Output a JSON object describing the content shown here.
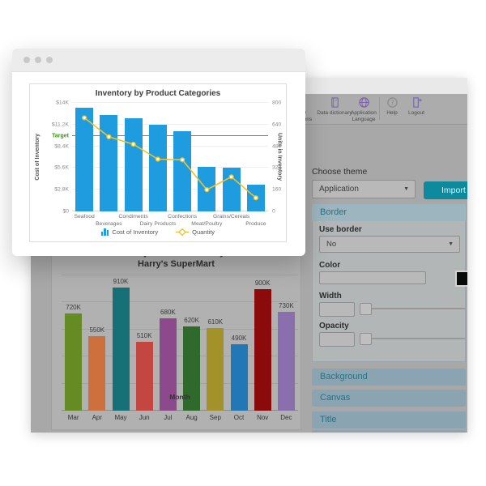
{
  "overlay_window": {
    "window_dots": 3
  },
  "toolbar": {
    "items": [
      {
        "label": "Deploy applications",
        "icon": "deploy-icon"
      },
      {
        "label": "Data dictionary",
        "icon": "book-icon"
      },
      {
        "label": "Application Language",
        "icon": "globe-icon"
      },
      {
        "label": "Help",
        "icon": "help-icon"
      },
      {
        "label": "Logout",
        "icon": "logout-icon"
      }
    ]
  },
  "theme_panel": {
    "choose_theme_label": "Choose theme",
    "theme_select_value": "Application",
    "import_button_label": "Import",
    "border": {
      "title": "Border",
      "use_border_label": "Use border",
      "use_border_value": "No",
      "color_label": "Color",
      "color_value": "",
      "color_swatch": "#000000",
      "width_label": "Width",
      "width_value": "",
      "opacity_label": "Opacity",
      "opacity_value": ""
    },
    "collapsed_sections": [
      "Background",
      "Canvas",
      "Title"
    ]
  },
  "chart_data": [
    {
      "type": "combo-bar-line",
      "title": "Inventory by Product Categories",
      "categories": [
        "Seafood",
        "Beverages",
        "Condiments",
        "Dairy Products",
        "Confections",
        "Meat/Poultry",
        "Grains/Cereals",
        "Produce"
      ],
      "series": [
        {
          "name": "Cost of Inventory",
          "type": "bar",
          "color": "#1f9ce0",
          "values_k_dollars": [
            13.4,
            12.4,
            12.0,
            11.2,
            10.3,
            5.7,
            5.6,
            3.5
          ]
        },
        {
          "name": "Quantity",
          "type": "line",
          "color": "#eec227",
          "values_units": [
            690,
            550,
            495,
            385,
            380,
            160,
            255,
            100
          ]
        }
      ],
      "y_left": {
        "label": "Cost of Inventory",
        "min": 0,
        "max": 14,
        "ticks": [
          "$0",
          "$2.8K",
          "$5.6K",
          "$8.4K",
          "$11.2K",
          "$14K"
        ]
      },
      "y_right": {
        "label": "Units in Inventory",
        "min": 0,
        "max": 800,
        "ticks": [
          "0",
          "160",
          "320",
          "480",
          "640",
          "800"
        ]
      },
      "target": {
        "label": "Target",
        "value_k_dollars": 9.8,
        "color": "#4fa316"
      },
      "grid": true,
      "legend_position": "bottom"
    },
    {
      "type": "bar",
      "title": "Monthly revenue for last year",
      "subtitle": "Harry's SuperMart",
      "xlabel": "Month",
      "categories": [
        "Mar",
        "Apr",
        "May",
        "Jun",
        "Jul",
        "Aug",
        "Sep",
        "Oct",
        "Nov",
        "Dec"
      ],
      "values": [
        720,
        550,
        910,
        510,
        680,
        620,
        610,
        490,
        900,
        730
      ],
      "data_labels": [
        "720K",
        "550K",
        "910K",
        "510K",
        "680K",
        "620K",
        "610K",
        "490K",
        "900K",
        "730K"
      ],
      "bar_colors": [
        "#658c24",
        "#cd703d",
        "#177078",
        "#c44640",
        "#8c4a8c",
        "#2f692c",
        "#a3922a",
        "#2277b5",
        "#8b0b0c",
        "#8a6fae"
      ],
      "ylim": [
        0,
        1000
      ],
      "grid": true,
      "legend_position": "none"
    }
  ]
}
